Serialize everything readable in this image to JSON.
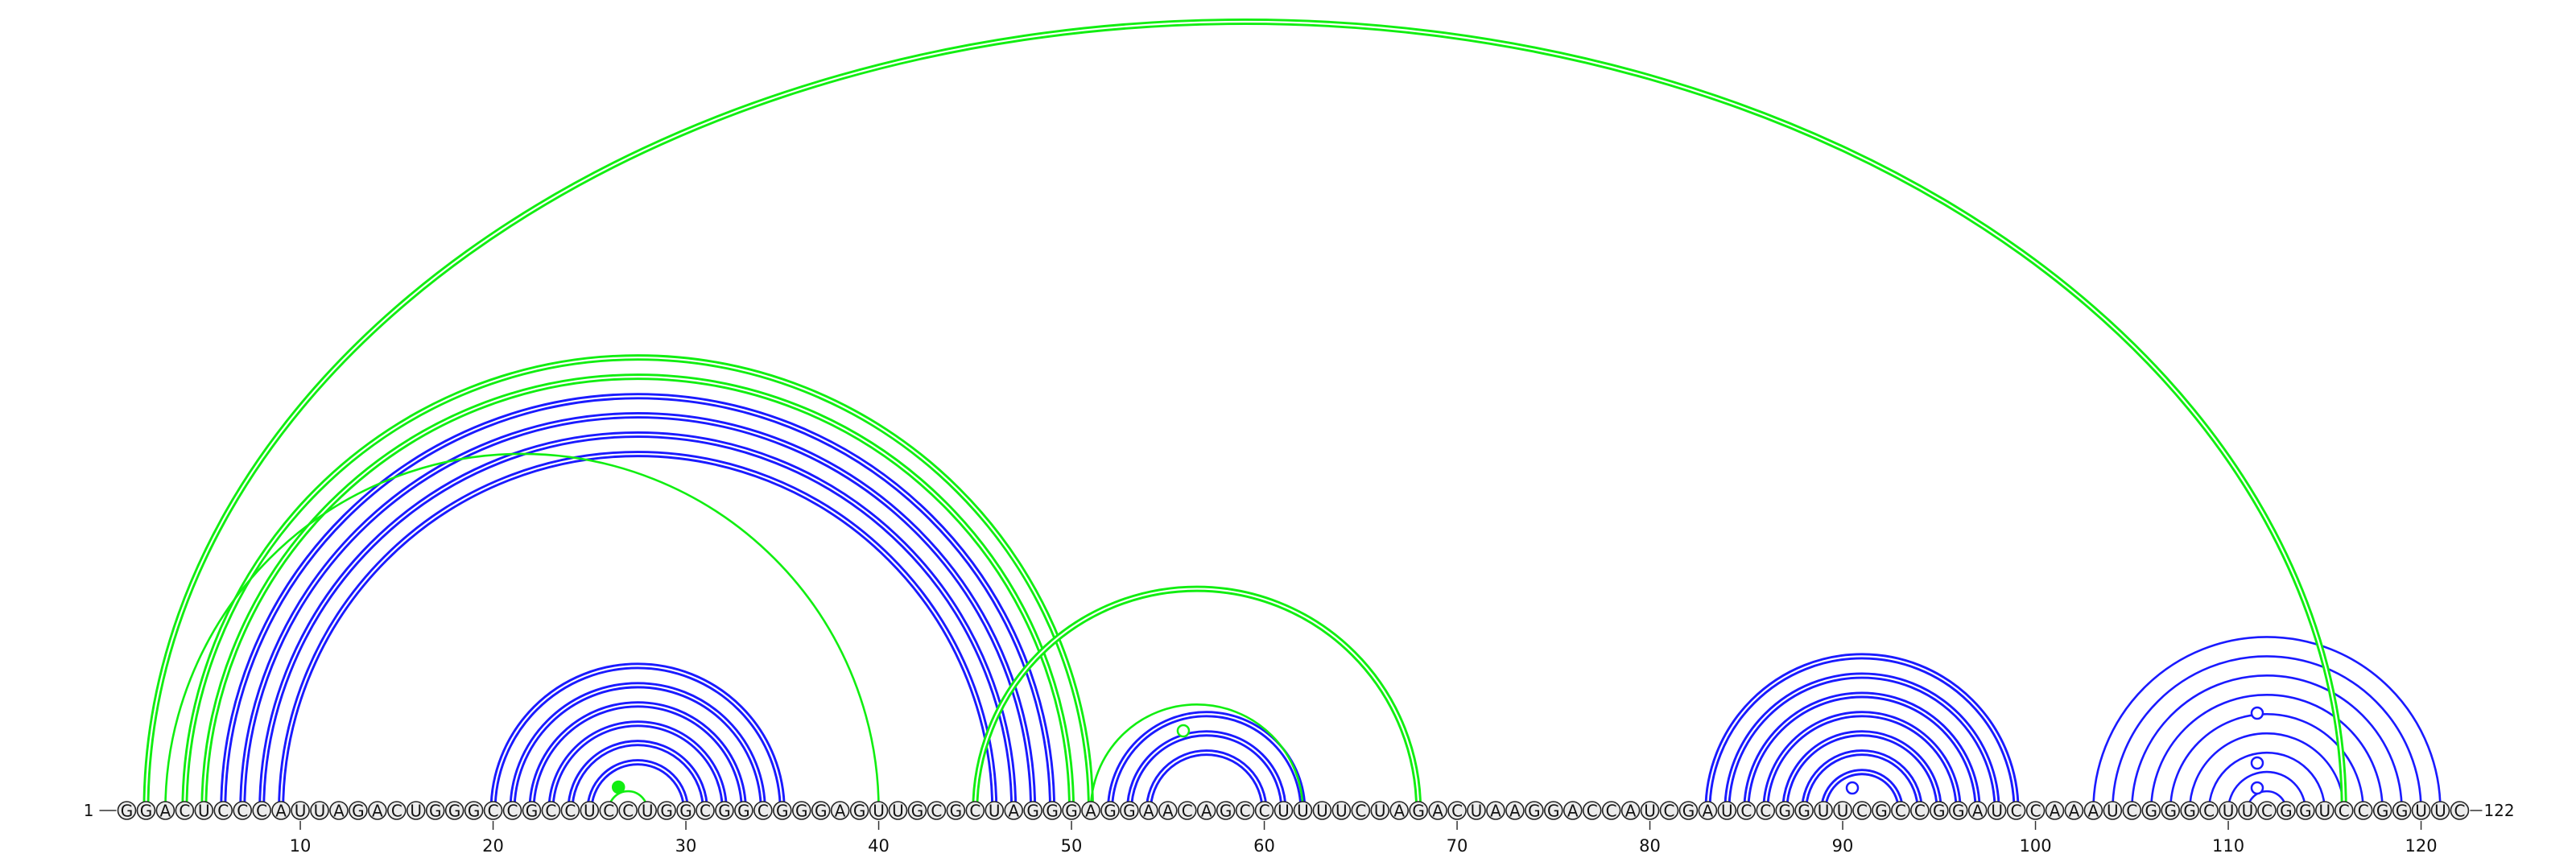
{
  "diagram": {
    "sequence": "GGACUCCCAUUAGACUGGGCCGCCUCCUGGCGGCGGGAGUUGCGCUAGGGAGGAACAGCCUUUUCUAGACUAAGGACCAUCGAUCCGGUUCGCCGGAUCCAAAUCGGGCUUCGGUCCGGUUC",
    "length": 122,
    "start_label": "1",
    "end_label": "122",
    "ticks": [
      "10",
      "20",
      "30",
      "40",
      "50",
      "60",
      "70",
      "80",
      "90",
      "100",
      "110",
      "120"
    ],
    "colors": {
      "blue": "#1a1aff",
      "green": "#11ee11",
      "nucleotide_fill": "#ececec",
      "nucleotide_stroke": "#222222",
      "text": "#111111"
    },
    "arc_groups": [
      {
        "color": "blue",
        "style": "double",
        "pairs": [
          [
            6,
            49
          ],
          [
            7,
            48
          ],
          [
            8,
            47
          ],
          [
            9,
            46
          ]
        ]
      },
      {
        "color": "blue",
        "style": "double",
        "pairs": [
          [
            20,
            35
          ],
          [
            21,
            34
          ],
          [
            22,
            33
          ],
          [
            23,
            32
          ],
          [
            24,
            31
          ],
          [
            25,
            30
          ]
        ]
      },
      {
        "color": "blue",
        "style": "double",
        "pairs": [
          [
            52,
            62
          ],
          [
            53,
            61
          ],
          [
            54,
            60
          ]
        ]
      },
      {
        "color": "blue",
        "style": "double",
        "pairs": [
          [
            83,
            99
          ],
          [
            84,
            98
          ],
          [
            85,
            97
          ],
          [
            86,
            96
          ],
          [
            87,
            95
          ],
          [
            88,
            94
          ],
          [
            89,
            93
          ]
        ]
      },
      {
        "color": "blue",
        "style": "single",
        "pairs": [
          [
            103,
            121
          ],
          [
            104,
            120
          ],
          [
            105,
            119
          ],
          [
            106,
            118
          ],
          [
            107,
            117
          ],
          [
            108,
            116
          ],
          [
            109,
            115
          ],
          [
            110,
            114
          ],
          [
            111,
            113
          ]
        ]
      },
      {
        "color": "green",
        "style": "double",
        "pairs": [
          [
            2,
            116
          ],
          [
            4,
            51
          ],
          [
            5,
            50
          ],
          [
            45,
            68
          ]
        ]
      },
      {
        "color": "green",
        "style": "single",
        "pairs": [
          [
            3,
            40
          ],
          [
            51,
            62
          ],
          [
            26,
            28
          ]
        ]
      }
    ],
    "markers": [
      {
        "color": "green",
        "center": 26.5,
        "filled": true
      },
      {
        "color": "green",
        "center": 55.8,
        "filled": false
      },
      {
        "color": "blue",
        "center": 90.5,
        "filled": false
      },
      {
        "color": "blue",
        "center": 111.5,
        "filled": false
      },
      {
        "color": "blue",
        "center": 111.5,
        "filled": false
      },
      {
        "color": "blue",
        "center": 111.5,
        "filled": false
      }
    ]
  }
}
